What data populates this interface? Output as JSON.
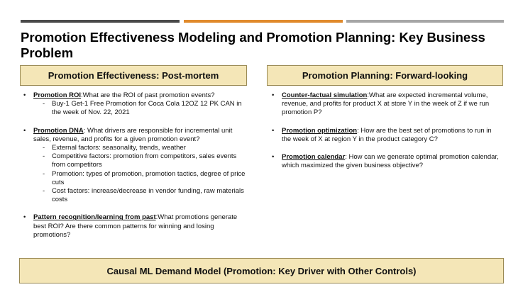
{
  "colors": {
    "bar_dark": "#4a4a4a",
    "bar_orange": "#e08a2c",
    "bar_gray": "#a6a6a6",
    "panel_fill": "#f4e6b7"
  },
  "title": "Promotion Effectiveness Modeling and Promotion Planning: Key Business Problem",
  "left": {
    "header": "Promotion Effectiveness: Post-mortem",
    "items": [
      {
        "head": "Promotion ROI",
        "text": ":What are the ROI of past promotion events?",
        "subs": [
          "Buy-1 Get-1 Free Promotion for Coca Cola 12OZ 12 PK CAN in the week of Nov. 22, 2021"
        ]
      },
      {
        "head": "Promotion DNA",
        "text": ": What drivers are responsible for incremental unit sales, revenue, and profits for a given promotion event?",
        "subs": [
          "External factors: seasonality, trends, weather",
          "Competitive factors: promotion from competitors, sales events from competitors",
          "Promotion: types of promotion, promotion tactics, degree of price cuts",
          "Cost factors: increase/decrease in vendor funding, raw materials costs"
        ]
      },
      {
        "head": "Pattern recognition/learning from past",
        "text": ":What promotions generate best ROI? Are there common patterns for winning and losing promotions?",
        "subs": []
      }
    ]
  },
  "right": {
    "header": "Promotion Planning: Forward-looking",
    "items": [
      {
        "head": "Counter-factual simulation",
        "text": ":What are expected incremental volume, revenue, and profits for product X at store Y in the week of Z if we run promotion P?"
      },
      {
        "head": "Promotion optimization",
        "text": ":  How are the best set of promotions to run in the week of X at region Y in the product category C?"
      },
      {
        "head": "Promotion calendar",
        "text": ":  How can we generate optimal promotion calendar, which maximized the given business objective?"
      }
    ]
  },
  "footer": "Causal ML Demand Model (Promotion: Key Driver with Other Controls)"
}
